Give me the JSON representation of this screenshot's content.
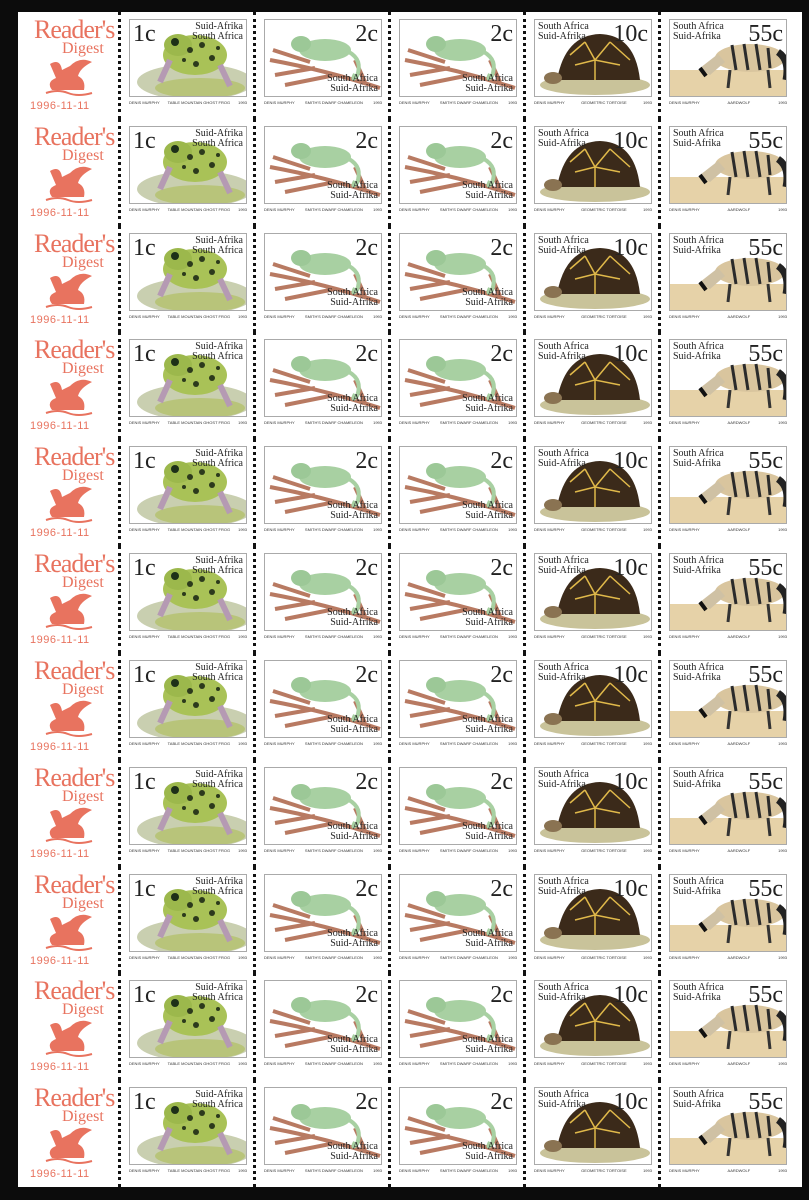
{
  "margin": {
    "logo_line1": "Reader's",
    "logo_line2": "Digest",
    "logo_color": "#e8735f",
    "dates": [
      "1996-11-11",
      "1996-11-11",
      "1996-11-11",
      "1996-11-11",
      "1996-11-11",
      "1996-11-11",
      "1996-11-11",
      "1996-11-11",
      "1996-11-11",
      "1996-11-11",
      "1996-11-11"
    ]
  },
  "stamps": [
    {
      "kind": "frog",
      "denomination": "1c",
      "country": [
        "Suid-Afrika",
        "South Africa"
      ],
      "artist": "Denis Murphy",
      "caption": "Table Mountain Ghost Frog",
      "year": "1993"
    },
    {
      "kind": "chameleon",
      "denomination": "2c",
      "country": [
        "South Africa",
        "Suid-Afrika"
      ],
      "artist": "Denis Murphy",
      "caption": "Smith's Dwarf Chameleon",
      "year": "1993"
    },
    {
      "kind": "chameleon",
      "denomination": "2c",
      "country": [
        "South Africa",
        "Suid-Afrika"
      ],
      "artist": "Denis Murphy",
      "caption": "Smith's Dwarf Chameleon",
      "year": "1993"
    },
    {
      "kind": "tortoise",
      "denomination": "10c",
      "country": [
        "South Africa",
        "Suid-Afrika"
      ],
      "artist": "Denis Murphy",
      "caption": "Geometric Tortoise",
      "year": "1993"
    },
    {
      "kind": "aardwolf",
      "denomination": "55c",
      "country": [
        "South Africa",
        "Suid-Afrika"
      ],
      "artist": "Denis Murphy",
      "caption": "Aardwolf",
      "year": "1993"
    }
  ]
}
